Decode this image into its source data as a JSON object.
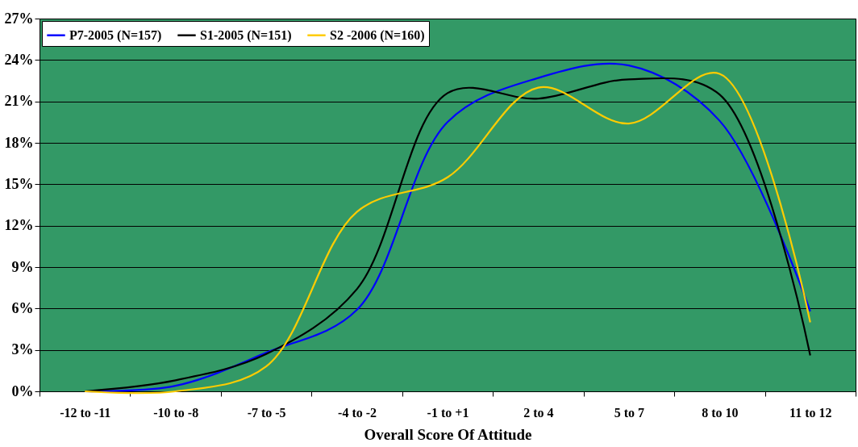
{
  "chart_data": {
    "type": "line",
    "xlabel": "Overall Score Of Attitude",
    "categories": [
      "-12 to -11",
      "-10 to -8",
      "-7 to -5",
      "-4 to -2",
      "-1 to +1",
      "2 to 4",
      "5 to 7",
      "8 to 10",
      "11 to 12"
    ],
    "series": [
      {
        "name": "P7-2005 (N=157)",
        "color": "#0000ff",
        "values": [
          0,
          0.4,
          2.8,
          5.9,
          19.5,
          22.7,
          23.6,
          19.6,
          5.8
        ]
      },
      {
        "name": "S1-2005 (N=151)",
        "color": "#000000",
        "values": [
          0,
          0.8,
          2.7,
          7.4,
          21.6,
          21.2,
          22.6,
          21.5,
          2.6
        ]
      },
      {
        "name": "S2 -2006 (N=160)",
        "color": "#ffcc00",
        "values": [
          0,
          0,
          1.8,
          13,
          15.5,
          22,
          19.4,
          23,
          5
        ]
      }
    ],
    "ylim": [
      0,
      27
    ],
    "yticks": [
      {
        "value": 0,
        "label": "0%"
      },
      {
        "value": 3,
        "label": "3%"
      },
      {
        "value": 6,
        "label": "6%"
      },
      {
        "value": 9,
        "label": "9%"
      },
      {
        "value": 12,
        "label": "12%"
      },
      {
        "value": 15,
        "label": "15%"
      },
      {
        "value": 18,
        "label": "18%"
      },
      {
        "value": 21,
        "label": "21%"
      },
      {
        "value": 24,
        "label": "24%"
      },
      {
        "value": 27,
        "label": "27%"
      }
    ],
    "grid": "y",
    "legend": "top left",
    "marker": "none",
    "line_style": "solid"
  }
}
